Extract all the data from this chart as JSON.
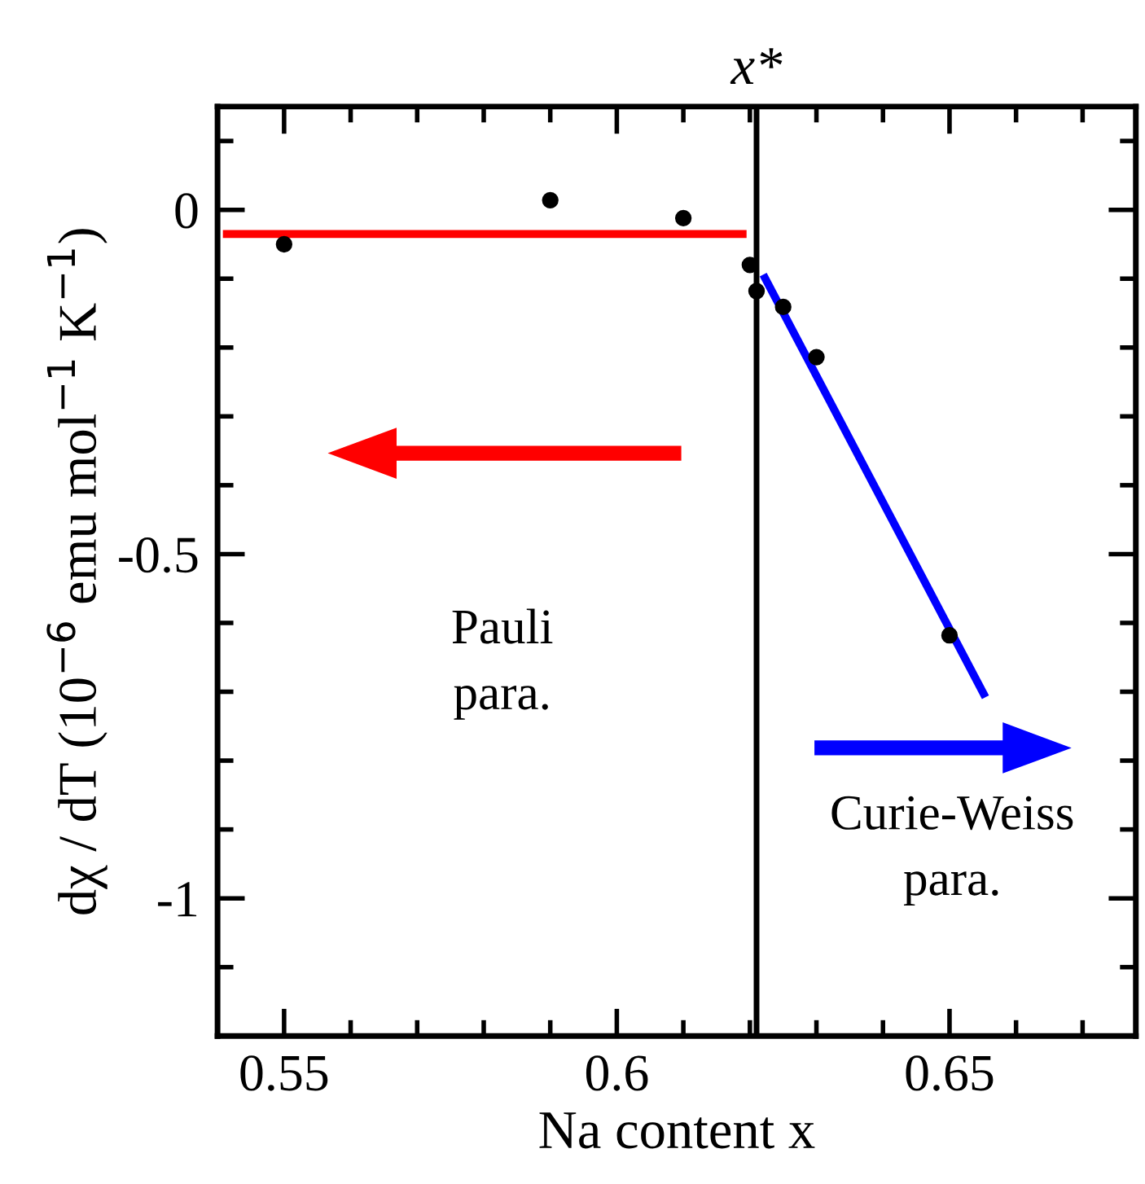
{
  "chart_data": {
    "type": "scatter",
    "xlabel": "Na content x",
    "ylabel": "dχ / dT (10$^{−6}$ emu mol$^{−1}$ K$^{−1}$)",
    "xlim": [
      0.54,
      0.678
    ],
    "ylim": [
      -1.2,
      0.15
    ],
    "xticks": [
      {
        "value": 0.55,
        "label": "0.55"
      },
      {
        "value": 0.56,
        "label": null
      },
      {
        "value": 0.57,
        "label": null
      },
      {
        "value": 0.58,
        "label": null
      },
      {
        "value": 0.59,
        "label": null
      },
      {
        "value": 0.6,
        "label": "0.6"
      },
      {
        "value": 0.61,
        "label": null
      },
      {
        "value": 0.62,
        "label": null
      },
      {
        "value": 0.63,
        "label": null
      },
      {
        "value": 0.64,
        "label": null
      },
      {
        "value": 0.65,
        "label": "0.65"
      },
      {
        "value": 0.66,
        "label": null
      },
      {
        "value": 0.67,
        "label": null
      }
    ],
    "yticks": [
      {
        "value": -1.1,
        "label": null
      },
      {
        "value": -1,
        "label": "-1"
      },
      {
        "value": -0.9,
        "label": null
      },
      {
        "value": -0.8,
        "label": null
      },
      {
        "value": -0.7,
        "label": null
      },
      {
        "value": -0.6,
        "label": null
      },
      {
        "value": -0.5,
        "label": "-0.5"
      },
      {
        "value": -0.4,
        "label": null
      },
      {
        "value": -0.3,
        "label": null
      },
      {
        "value": -0.2,
        "label": null
      },
      {
        "value": -0.1,
        "label": null
      },
      {
        "value": 0,
        "label": "0"
      },
      {
        "value": 0.1,
        "label": null
      }
    ],
    "grid": false,
    "series": [
      {
        "marker": "circle",
        "color": "#000000",
        "x": [
          0.55,
          0.59,
          0.61,
          0.62,
          0.621,
          0.625,
          0.63,
          0.65
        ],
        "values": [
          -0.05,
          0.014,
          -0.012,
          -0.08,
          -0.118,
          -0.141,
          -0.214,
          -0.618
        ]
      },
      {
        "type": "line",
        "marker": "none",
        "color": "#ff0000",
        "x": [
          0.5408,
          0.6195
        ],
        "values": [
          -0.035,
          -0.035
        ]
      },
      {
        "type": "line",
        "marker": "none",
        "color": "#0000ff",
        "x": [
          0.622,
          0.6554
        ],
        "values": [
          -0.094,
          -0.708
        ]
      }
    ],
    "ref_lines": [
      {
        "axis": "x",
        "value": 0.621,
        "label": "x*",
        "color": "#000000"
      }
    ],
    "annotations": [
      "Pauli\npara.",
      "Curie-Weiss\npara."
    ]
  }
}
